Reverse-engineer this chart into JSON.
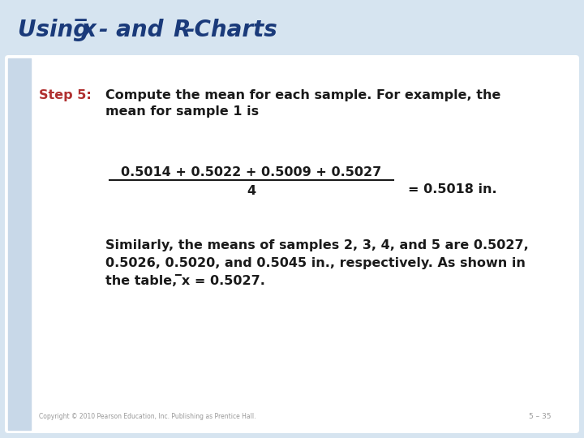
{
  "bg_color": "#d6e4f0",
  "title_color": "#1a3a7a",
  "title_fontsize": 20,
  "step_label": "Step 5:",
  "step_color": "#b03030",
  "text_color": "#1a1a1a",
  "text_fontsize": 11.5,
  "left_bar_color": "#c8d8e8",
  "footer_copyright": "Copyright © 2010 Pearson Education, Inc. Publishing as Prentice Hall.",
  "footer_page": "5 – 35",
  "white_bg": "#ffffff"
}
